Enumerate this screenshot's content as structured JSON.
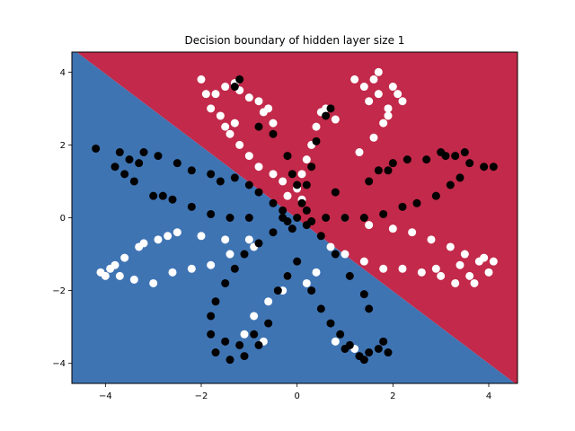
{
  "chart_data": {
    "type": "scatter",
    "title": "Decision boundary of hidden layer size 1",
    "xlabel": "",
    "ylabel": "",
    "xlim": [
      -4.7,
      4.6
    ],
    "ylim": [
      -4.55,
      4.55
    ],
    "xticks": [
      -4,
      -2,
      0,
      2,
      4
    ],
    "yticks": [
      -4,
      -2,
      0,
      2,
      4
    ],
    "xtick_labels": [
      "−4",
      "−2",
      "0",
      "2",
      "4"
    ],
    "ytick_labels": [
      "−4",
      "−2",
      "0",
      "2",
      "4"
    ],
    "grid": false,
    "colors": {
      "red_region": "#c2294a",
      "blue_region": "#3f74b3",
      "class_0": "#ffffff",
      "class_1": "#000000"
    },
    "decision_boundary": {
      "x1": -4.6,
      "y1": 4.55,
      "x2": 4.55,
      "y2": -4.55
    },
    "series": [
      {
        "color": "white",
        "points": [
          [
            -2.0,
            3.8
          ],
          [
            -1.7,
            3.4
          ],
          [
            -1.5,
            3.6
          ],
          [
            -1.3,
            3.7
          ],
          [
            -1.0,
            3.3
          ],
          [
            -0.8,
            3.2
          ],
          [
            -0.6,
            3.0
          ],
          [
            -0.5,
            2.6
          ],
          [
            -1.6,
            2.8
          ],
          [
            -1.4,
            2.3
          ],
          [
            -1.2,
            2.0
          ],
          [
            -1.0,
            1.7
          ],
          [
            -0.8,
            1.4
          ],
          [
            -0.5,
            1.2
          ],
          [
            -0.3,
            1.0
          ],
          [
            -0.2,
            0.6
          ],
          [
            -1.8,
            3.0
          ],
          [
            -1.9,
            3.4
          ],
          [
            -1.2,
            3.5
          ],
          [
            -0.7,
            2.9
          ],
          [
            -1.5,
            2.5
          ],
          [
            -1.3,
            2.6
          ],
          [
            0.3,
            2.0
          ],
          [
            0.4,
            2.5
          ],
          [
            0.5,
            2.9
          ],
          [
            0.6,
            3.0
          ],
          [
            0.8,
            2.7
          ],
          [
            0.2,
            1.6
          ],
          [
            0.1,
            1.2
          ],
          [
            0.0,
            0.8
          ],
          [
            0.1,
            0.5
          ],
          [
            1.2,
            3.8
          ],
          [
            1.4,
            3.6
          ],
          [
            1.6,
            3.8
          ],
          [
            1.7,
            3.4
          ],
          [
            1.9,
            3.0
          ],
          [
            2.0,
            3.6
          ],
          [
            2.1,
            3.4
          ],
          [
            1.8,
            2.6
          ],
          [
            1.6,
            2.2
          ],
          [
            1.3,
            1.8
          ],
          [
            1.5,
            3.2
          ],
          [
            1.9,
            2.8
          ],
          [
            1.7,
            4.0
          ],
          [
            2.2,
            3.2
          ],
          [
            1.0,
            0.0
          ],
          [
            1.5,
            -0.2
          ],
          [
            2.0,
            -0.3
          ],
          [
            2.4,
            -0.4
          ],
          [
            2.8,
            -0.6
          ],
          [
            3.2,
            -0.8
          ],
          [
            3.5,
            -1.0
          ],
          [
            3.8,
            -1.2
          ],
          [
            4.0,
            -1.5
          ],
          [
            3.6,
            -1.6
          ],
          [
            3.3,
            -1.8
          ],
          [
            3.0,
            -1.6
          ],
          [
            2.6,
            -1.5
          ],
          [
            2.2,
            -1.4
          ],
          [
            1.8,
            -1.4
          ],
          [
            1.4,
            -1.2
          ],
          [
            1.0,
            -1.0
          ],
          [
            0.7,
            -0.8
          ],
          [
            3.9,
            -1.1
          ],
          [
            4.1,
            -1.2
          ],
          [
            3.4,
            -1.3
          ],
          [
            3.7,
            -1.8
          ],
          [
            2.9,
            -1.4
          ],
          [
            -1.0,
            -0.6
          ],
          [
            -1.5,
            -0.6
          ],
          [
            -2.0,
            -0.5
          ],
          [
            -2.5,
            -0.4
          ],
          [
            -2.9,
            -0.6
          ],
          [
            -3.3,
            -0.8
          ],
          [
            -3.6,
            -1.1
          ],
          [
            -3.9,
            -1.4
          ],
          [
            -4.0,
            -1.6
          ],
          [
            -3.7,
            -1.6
          ],
          [
            -3.4,
            -1.7
          ],
          [
            -3.0,
            -1.8
          ],
          [
            -2.6,
            -1.5
          ],
          [
            -2.2,
            -1.4
          ],
          [
            -1.8,
            -1.3
          ],
          [
            -1.4,
            -1.0
          ],
          [
            -0.9,
            -0.8
          ],
          [
            -3.2,
            -0.7
          ],
          [
            -2.7,
            -0.5
          ],
          [
            -3.8,
            -1.3
          ],
          [
            -4.1,
            -1.5
          ],
          [
            -0.2,
            -1.6
          ],
          [
            -0.3,
            -2.0
          ],
          [
            -0.6,
            -2.3
          ],
          [
            -0.9,
            -2.7
          ],
          [
            -1.1,
            -3.2
          ],
          [
            -0.7,
            -3.4
          ],
          [
            0.4,
            -1.5
          ],
          [
            0.2,
            -1.8
          ],
          [
            0.8,
            -3.4
          ],
          [
            1.2,
            -3.6
          ]
        ]
      },
      {
        "color": "black",
        "points": [
          [
            -4.2,
            1.9
          ],
          [
            -3.8,
            1.4
          ],
          [
            -3.5,
            1.6
          ],
          [
            -3.2,
            1.8
          ],
          [
            -2.9,
            1.7
          ],
          [
            -2.5,
            1.5
          ],
          [
            -2.2,
            1.3
          ],
          [
            -1.8,
            1.2
          ],
          [
            -1.3,
            1.1
          ],
          [
            -1.0,
            0.9
          ],
          [
            -0.8,
            0.7
          ],
          [
            -0.5,
            0.4
          ],
          [
            -0.3,
            0.2
          ],
          [
            -3.6,
            1.2
          ],
          [
            -3.4,
            1.0
          ],
          [
            -3.0,
            0.6
          ],
          [
            -2.6,
            0.5
          ],
          [
            -2.2,
            0.3
          ],
          [
            -1.8,
            0.1
          ],
          [
            -1.4,
            0.0
          ],
          [
            -1.0,
            0.0
          ],
          [
            -3.7,
            1.8
          ],
          [
            -3.3,
            1.5
          ],
          [
            -2.8,
            0.6
          ],
          [
            -1.6,
            1.0
          ],
          [
            1.5,
            1.0
          ],
          [
            1.9,
            1.3
          ],
          [
            2.3,
            1.6
          ],
          [
            2.7,
            1.6
          ],
          [
            3.0,
            1.8
          ],
          [
            3.3,
            1.7
          ],
          [
            3.6,
            1.5
          ],
          [
            3.9,
            1.4
          ],
          [
            4.1,
            1.4
          ],
          [
            3.4,
            1.1
          ],
          [
            3.2,
            0.9
          ],
          [
            2.9,
            0.6
          ],
          [
            2.5,
            0.4
          ],
          [
            2.2,
            0.3
          ],
          [
            1.8,
            0.1
          ],
          [
            1.4,
            0.0
          ],
          [
            1.0,
            0.0
          ],
          [
            0.6,
            0.0
          ],
          [
            3.1,
            1.7
          ],
          [
            2.0,
            1.5
          ],
          [
            3.5,
            1.8
          ],
          [
            1.7,
            1.3
          ],
          [
            -1.7,
            -2.3
          ],
          [
            -1.5,
            -1.8
          ],
          [
            -1.3,
            -1.4
          ],
          [
            -1.1,
            -1.0
          ],
          [
            -0.8,
            -0.7
          ],
          [
            -0.5,
            -0.4
          ],
          [
            -0.2,
            -0.1
          ],
          [
            -1.8,
            -2.7
          ],
          [
            -1.8,
            -3.2
          ],
          [
            -1.7,
            -3.7
          ],
          [
            -1.4,
            -3.9
          ],
          [
            -1.1,
            -3.8
          ],
          [
            -0.8,
            -3.5
          ],
          [
            -0.6,
            -2.9
          ],
          [
            -0.4,
            -2.0
          ],
          [
            -0.2,
            -1.6
          ],
          [
            0.0,
            -1.2
          ],
          [
            -1.5,
            -3.4
          ],
          [
            -1.2,
            -3.5
          ],
          [
            -0.9,
            -3.2
          ],
          [
            0.3,
            -2.0
          ],
          [
            0.5,
            -2.5
          ],
          [
            0.7,
            -2.9
          ],
          [
            0.9,
            -3.2
          ],
          [
            1.1,
            -3.5
          ],
          [
            1.3,
            -3.8
          ],
          [
            1.5,
            -3.7
          ],
          [
            1.7,
            -3.6
          ],
          [
            1.8,
            -3.4
          ],
          [
            1.5,
            -2.5
          ],
          [
            1.4,
            -2.1
          ],
          [
            1.1,
            -1.6
          ],
          [
            0.8,
            -1.0
          ],
          [
            0.5,
            -0.5
          ],
          [
            0.2,
            -0.2
          ],
          [
            1.0,
            -3.6
          ],
          [
            1.4,
            -3.9
          ],
          [
            1.9,
            -3.7
          ],
          [
            -1.3,
            3.6
          ],
          [
            -1.2,
            3.8
          ],
          [
            -0.8,
            2.5
          ],
          [
            -0.5,
            2.3
          ],
          [
            -0.2,
            1.7
          ],
          [
            -0.1,
            1.2
          ],
          [
            0.0,
            0.9
          ],
          [
            0.6,
            2.8
          ],
          [
            0.4,
            2.1
          ],
          [
            0.3,
            1.4
          ],
          [
            0.2,
            0.9
          ],
          [
            0.1,
            0.4
          ],
          [
            0.7,
            3.0
          ],
          [
            0.8,
            0.7
          ],
          [
            -0.3,
            0.0
          ],
          [
            0.0,
            0.0
          ],
          [
            0.2,
            0.2
          ],
          [
            -0.1,
            -0.3
          ],
          [
            0.3,
            -0.1
          ]
        ]
      }
    ]
  }
}
